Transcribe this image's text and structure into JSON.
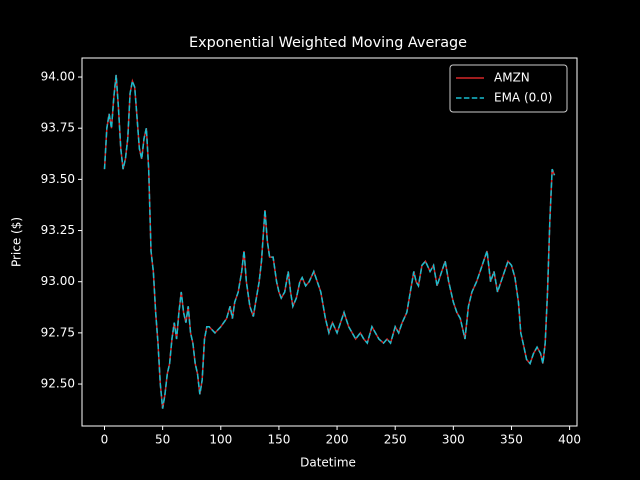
{
  "chart_data": {
    "type": "line",
    "title": "Exponential Weighted Moving Average",
    "xlabel": "Datetime",
    "ylabel": "Price ($)",
    "x": [
      0,
      2,
      4,
      6,
      8,
      10,
      12,
      14,
      16,
      18,
      20,
      22,
      24,
      26,
      28,
      30,
      32,
      34,
      36,
      38,
      40,
      42,
      44,
      46,
      48,
      50,
      52,
      54,
      56,
      58,
      60,
      62,
      64,
      66,
      68,
      70,
      72,
      74,
      76,
      78,
      80,
      82,
      84,
      86,
      88,
      90,
      95,
      100,
      105,
      108,
      110,
      112,
      115,
      118,
      120,
      122,
      125,
      128,
      130,
      133,
      135,
      138,
      140,
      142,
      145,
      148,
      150,
      152,
      155,
      158,
      160,
      162,
      165,
      168,
      170,
      173,
      176,
      180,
      183,
      186,
      190,
      193,
      196,
      200,
      203,
      206,
      210,
      213,
      216,
      220,
      223,
      226,
      230,
      233,
      236,
      240,
      243,
      246,
      250,
      253,
      256,
      260,
      263,
      266,
      268,
      270,
      273,
      276,
      280,
      283,
      286,
      290,
      293,
      296,
      300,
      303,
      306,
      310,
      313,
      316,
      320,
      323,
      326,
      329,
      332,
      335,
      338,
      341,
      344,
      347,
      350,
      353,
      356,
      358,
      360,
      363,
      366,
      369,
      372,
      375,
      377,
      379,
      381,
      383,
      385,
      387
    ],
    "series": [
      {
        "name": "AMZN",
        "color": "#d62728",
        "linestyle": "solid",
        "values": [
          93.55,
          93.75,
          93.82,
          93.75,
          93.9,
          94.01,
          93.85,
          93.65,
          93.55,
          93.6,
          93.7,
          93.92,
          93.98,
          93.95,
          93.8,
          93.65,
          93.6,
          93.7,
          93.75,
          93.55,
          93.15,
          93.05,
          92.85,
          92.7,
          92.5,
          92.38,
          92.45,
          92.55,
          92.6,
          92.72,
          92.8,
          92.72,
          92.85,
          92.95,
          92.85,
          92.8,
          92.88,
          92.75,
          92.7,
          92.6,
          92.55,
          92.45,
          92.52,
          92.72,
          92.78,
          92.78,
          92.75,
          92.78,
          92.82,
          92.88,
          92.82,
          92.9,
          92.95,
          93.05,
          93.15,
          93.0,
          92.88,
          92.83,
          92.9,
          93.0,
          93.1,
          93.35,
          93.2,
          93.12,
          93.12,
          93.0,
          92.95,
          92.92,
          92.95,
          93.05,
          92.95,
          92.88,
          92.92,
          93.0,
          93.02,
          92.98,
          93.0,
          93.05,
          93.0,
          92.95,
          92.82,
          92.75,
          92.8,
          92.75,
          92.8,
          92.85,
          92.78,
          92.75,
          92.72,
          92.75,
          92.72,
          92.7,
          92.78,
          92.75,
          92.72,
          92.7,
          92.72,
          92.7,
          92.78,
          92.75,
          92.8,
          92.85,
          92.95,
          93.05,
          93.0,
          92.98,
          93.08,
          93.1,
          93.05,
          93.08,
          92.98,
          93.05,
          93.1,
          93.0,
          92.9,
          92.85,
          92.82,
          92.72,
          92.88,
          92.95,
          93.0,
          93.05,
          93.1,
          93.15,
          93.0,
          93.05,
          92.95,
          93.0,
          93.05,
          93.1,
          93.08,
          93.02,
          92.9,
          92.75,
          92.7,
          92.62,
          92.6,
          92.65,
          92.68,
          92.65,
          92.6,
          92.7,
          92.95,
          93.3,
          93.55,
          93.52
        ]
      },
      {
        "name": "EMA (0.0)",
        "color": "#17becf",
        "linestyle": "dashed",
        "values": [
          93.55,
          93.75,
          93.82,
          93.75,
          93.9,
          94.01,
          93.85,
          93.65,
          93.55,
          93.6,
          93.7,
          93.92,
          93.98,
          93.95,
          93.8,
          93.65,
          93.6,
          93.7,
          93.75,
          93.55,
          93.15,
          93.05,
          92.85,
          92.7,
          92.5,
          92.38,
          92.45,
          92.55,
          92.6,
          92.72,
          92.8,
          92.72,
          92.85,
          92.95,
          92.85,
          92.8,
          92.88,
          92.75,
          92.7,
          92.6,
          92.55,
          92.45,
          92.52,
          92.72,
          92.78,
          92.78,
          92.75,
          92.78,
          92.82,
          92.88,
          92.82,
          92.9,
          92.95,
          93.05,
          93.15,
          93.0,
          92.88,
          92.83,
          92.9,
          93.0,
          93.1,
          93.35,
          93.2,
          93.12,
          93.12,
          93.0,
          92.95,
          92.92,
          92.95,
          93.05,
          92.95,
          92.88,
          92.92,
          93.0,
          93.02,
          92.98,
          93.0,
          93.05,
          93.0,
          92.95,
          92.82,
          92.75,
          92.8,
          92.75,
          92.8,
          92.85,
          92.78,
          92.75,
          92.72,
          92.75,
          92.72,
          92.7,
          92.78,
          92.75,
          92.72,
          92.7,
          92.72,
          92.7,
          92.78,
          92.75,
          92.8,
          92.85,
          92.95,
          93.05,
          93.0,
          92.98,
          93.08,
          93.1,
          93.05,
          93.08,
          92.98,
          93.05,
          93.1,
          93.0,
          92.9,
          92.85,
          92.82,
          92.72,
          92.88,
          92.95,
          93.0,
          93.05,
          93.1,
          93.15,
          93.0,
          93.05,
          92.95,
          93.0,
          93.05,
          93.1,
          93.08,
          93.02,
          92.9,
          92.75,
          92.7,
          92.62,
          92.6,
          92.65,
          92.68,
          92.65,
          92.6,
          92.7,
          92.95,
          93.3,
          93.55,
          93.52
        ]
      }
    ],
    "xlim": [
      -19.35,
      406.35
    ],
    "ylim": [
      92.295,
      94.093
    ],
    "xticks": [
      0,
      50,
      100,
      150,
      200,
      250,
      300,
      350,
      400
    ],
    "yticks": [
      {
        "value": 92.5,
        "label": "92.50"
      },
      {
        "value": 92.75,
        "label": "92.75"
      },
      {
        "value": 93.0,
        "label": "93.00"
      },
      {
        "value": 93.25,
        "label": "93.25"
      },
      {
        "value": 93.5,
        "label": "93.50"
      },
      {
        "value": 93.75,
        "label": "93.75"
      },
      {
        "value": 94.0,
        "label": "94.00"
      }
    ],
    "grid": false,
    "legend": "upper right"
  }
}
